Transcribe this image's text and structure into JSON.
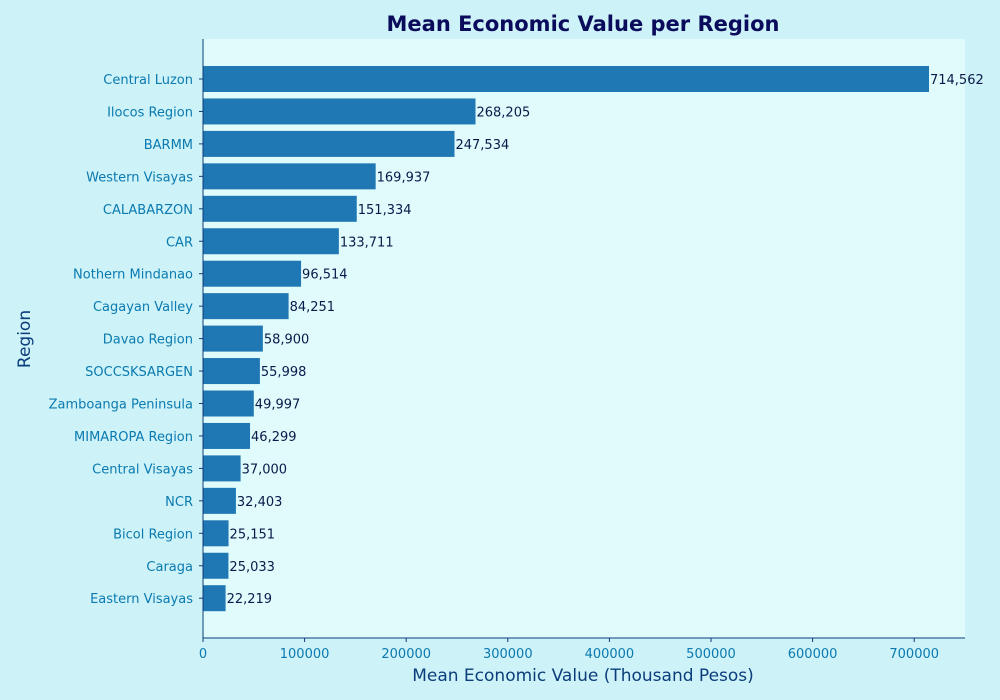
{
  "chart_data": {
    "type": "bar",
    "orientation": "horizontal",
    "title": "Mean Economic Value per Region",
    "xlabel": "Mean Economic Value (Thousand Pesos)",
    "ylabel": "Region",
    "xlim": [
      0,
      750000
    ],
    "xticks": [
      0,
      100000,
      200000,
      300000,
      400000,
      500000,
      600000,
      700000
    ],
    "xtick_labels": [
      "0",
      "100000",
      "200000",
      "300000",
      "400000",
      "500000",
      "600000",
      "700000"
    ],
    "grid": false,
    "categories": [
      "Central Luzon",
      "Ilocos Region",
      "BARMM",
      "Western Visayas",
      "CALABARZON",
      "CAR",
      "Nothern Mindanao",
      "Cagayan Valley",
      "Davao Region",
      "SOCCSKSARGEN",
      "Zamboanga Peninsula",
      "MIMAROPA Region",
      "Central Visayas",
      "NCR",
      "Bicol Region",
      "Caraga",
      "Eastern Visayas"
    ],
    "values": [
      714562,
      268205,
      247534,
      169937,
      151334,
      133711,
      96514,
      84251,
      58900,
      55998,
      49997,
      46299,
      37000,
      32403,
      25151,
      25033,
      22219
    ],
    "value_labels": [
      "714,562",
      "268,205",
      "247,534",
      "169,937",
      "151,334",
      "133,711",
      "96,514",
      "84,251",
      "58,900",
      "55,998",
      "49,997",
      "46,299",
      "37,000",
      "32,403",
      "25,151",
      "25,033",
      "22,219"
    ]
  },
  "colors": {
    "bar": "#1f77b4",
    "plot_background": "#e0fbfc",
    "figure_background": "#cdf2f8",
    "axis": "#0b3d7a"
  }
}
